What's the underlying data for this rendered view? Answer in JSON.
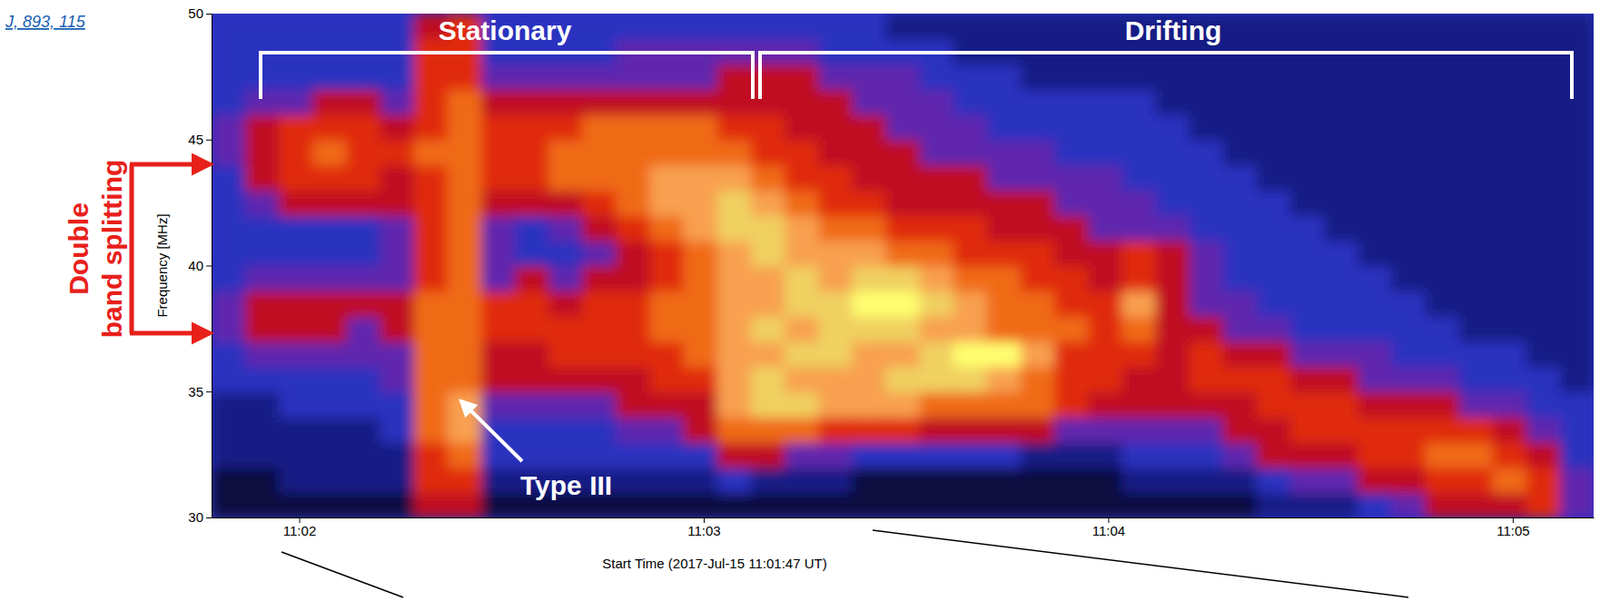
{
  "chart_data": {
    "type": "heatmap",
    "citation": "J, 893, 115",
    "x_label": "Start Time (2017-Jul-15 11:01:47 UT)",
    "y_label": "Frequency [MHz]",
    "xlim": [
      0,
      205
    ],
    "ylim": [
      30,
      50
    ],
    "xticks": [
      {
        "value": 13,
        "label": "11:02"
      },
      {
        "value": 73,
        "label": "11:03"
      },
      {
        "value": 133,
        "label": "11:04"
      },
      {
        "value": 193,
        "label": "11:05"
      }
    ],
    "yticks": [
      30,
      35,
      40,
      45,
      50
    ],
    "x_edges": [
      0,
      5,
      10,
      15,
      20,
      25,
      30,
      35,
      40,
      45,
      50,
      55,
      60,
      65,
      70,
      75,
      80,
      85,
      90,
      95,
      100,
      105,
      110,
      115,
      120,
      125,
      130,
      135,
      140,
      145,
      150,
      155,
      160,
      165,
      170,
      175,
      180,
      185,
      190,
      195,
      200,
      205
    ],
    "y_edges": [
      30,
      31,
      32,
      33,
      34,
      35,
      36,
      37,
      38,
      39,
      40,
      41,
      42,
      43,
      44,
      45,
      46,
      47,
      48,
      49,
      50
    ],
    "zlim": [
      0,
      10
    ],
    "z": [
      [
        1,
        1,
        2,
        2,
        2,
        3,
        3,
        4,
        4,
        3,
        3,
        3,
        3,
        3,
        4,
        4,
        3,
        3,
        3,
        3
      ],
      [
        1,
        1,
        2,
        2,
        2,
        3,
        4,
        5,
        5,
        4,
        3,
        3,
        4,
        5,
        5,
        5,
        4,
        3,
        3,
        3
      ],
      [
        1,
        2,
        2,
        2,
        3,
        3,
        4,
        5,
        5,
        4,
        3,
        3,
        5,
        6,
        6,
        6,
        4,
        3,
        3,
        3
      ],
      [
        1,
        2,
        2,
        2,
        3,
        3,
        4,
        5,
        5,
        4,
        3,
        3,
        5,
        6,
        7,
        6,
        5,
        3,
        3,
        3
      ],
      [
        1,
        2,
        2,
        2,
        3,
        3,
        4,
        4,
        5,
        4,
        3,
        3,
        5,
        6,
        6,
        6,
        5,
        3,
        3,
        3
      ],
      [
        1,
        2,
        2,
        3,
        3,
        4,
        4,
        5,
        5,
        4,
        4,
        4,
        5,
        5,
        6,
        5,
        4,
        3,
        3,
        3
      ],
      [
        5,
        6,
        6,
        7,
        7,
        7,
        7,
        7,
        7,
        6,
        6,
        6,
        6,
        6,
        7,
        6,
        6,
        6,
        6,
        5
      ],
      [
        5,
        6,
        7,
        8,
        8,
        7,
        7,
        7,
        7,
        7,
        7,
        7,
        7,
        7,
        7,
        7,
        7,
        6,
        6,
        6
      ],
      [
        1,
        2,
        3,
        3,
        4,
        5,
        5,
        6,
        6,
        4,
        4,
        4,
        5,
        6,
        6,
        6,
        5,
        4,
        3,
        3
      ],
      [
        1,
        2,
        3,
        3,
        4,
        5,
        5,
        6,
        6,
        5,
        3,
        3,
        5,
        6,
        6,
        6,
        5,
        4,
        3,
        3
      ],
      [
        1,
        2,
        3,
        3,
        4,
        5,
        6,
        6,
        5,
        4,
        3,
        4,
        5,
        7,
        7,
        6,
        5,
        4,
        3,
        3
      ],
      [
        1,
        2,
        3,
        3,
        4,
        5,
        6,
        6,
        6,
        5,
        4,
        5,
        6,
        7,
        7,
        7,
        5,
        4,
        3,
        3
      ],
      [
        1,
        2,
        3,
        4,
        5,
        5,
        6,
        6,
        6,
        5,
        5,
        6,
        7,
        7,
        7,
        7,
        5,
        4,
        4,
        3
      ],
      [
        1,
        2,
        3,
        4,
        5,
        6,
        6,
        7,
        7,
        6,
        6,
        7,
        8,
        8,
        7,
        7,
        5,
        4,
        4,
        3
      ],
      [
        1,
        2,
        3,
        5,
        5,
        6,
        7,
        7,
        7,
        7,
        7,
        8,
        8,
        8,
        7,
        7,
        5,
        4,
        4,
        3
      ],
      [
        1,
        3,
        5,
        7,
        8,
        8,
        8,
        8,
        8,
        8,
        8,
        9,
        9,
        8,
        7,
        6,
        5,
        5,
        4,
        3
      ],
      [
        1,
        2,
        5,
        7,
        9,
        9,
        8,
        9,
        8,
        8,
        9,
        9,
        8,
        7,
        6,
        6,
        5,
        5,
        4,
        3
      ],
      [
        1,
        2,
        4,
        7,
        9,
        8,
        9,
        8,
        9,
        9,
        8,
        8,
        7,
        6,
        6,
        5,
        5,
        5,
        4,
        3
      ],
      [
        1,
        2,
        4,
        6,
        8,
        8,
        9,
        9,
        9,
        8,
        8,
        7,
        6,
        6,
        5,
        5,
        5,
        4,
        3,
        3
      ],
      [
        1,
        1,
        3,
        6,
        8,
        8,
        8,
        9,
        10,
        9,
        8,
        7,
        6,
        5,
        5,
        5,
        4,
        4,
        3,
        3
      ],
      [
        1,
        1,
        3,
        6,
        8,
        9,
        8,
        9,
        10,
        9,
        7,
        6,
        5,
        5,
        5,
        4,
        4,
        4,
        3,
        2
      ],
      [
        1,
        1,
        3,
        5,
        7,
        9,
        9,
        8,
        9,
        8,
        7,
        6,
        5,
        5,
        4,
        4,
        4,
        3,
        3,
        2
      ],
      [
        1,
        1,
        3,
        5,
        7,
        9,
        10,
        8,
        8,
        7,
        6,
        6,
        5,
        5,
        4,
        4,
        3,
        3,
        2,
        2
      ],
      [
        1,
        1,
        3,
        5,
        7,
        8,
        10,
        7,
        7,
        7,
        6,
        5,
        5,
        4,
        4,
        3,
        3,
        3,
        2,
        2
      ],
      [
        1,
        1,
        2,
        5,
        7,
        7,
        8,
        7,
        7,
        6,
        6,
        5,
        5,
        4,
        4,
        3,
        3,
        2,
        2,
        2
      ],
      [
        1,
        1,
        2,
        4,
        6,
        6,
        6,
        7,
        6,
        6,
        5,
        5,
        4,
        4,
        3,
        3,
        3,
        2,
        2,
        2
      ],
      [
        1,
        1,
        2,
        4,
        5,
        6,
        6,
        6,
        6,
        5,
        5,
        4,
        4,
        4,
        3,
        3,
        3,
        2,
        2,
        2
      ],
      [
        1,
        2,
        3,
        4,
        5,
        5,
        6,
        7,
        8,
        6,
        6,
        4,
        4,
        3,
        3,
        3,
        3,
        2,
        2,
        2
      ],
      [
        1,
        2,
        3,
        4,
        5,
        5,
        5,
        5,
        5,
        5,
        5,
        4,
        3,
        3,
        3,
        3,
        2,
        2,
        2,
        2
      ],
      [
        1,
        2,
        3,
        4,
        5,
        6,
        6,
        5,
        4,
        4,
        4,
        3,
        3,
        3,
        3,
        2,
        2,
        2,
        2,
        2
      ],
      [
        1,
        2,
        4,
        5,
        5,
        6,
        5,
        4,
        4,
        3,
        3,
        3,
        3,
        3,
        2,
        2,
        2,
        2,
        2,
        2
      ],
      [
        2,
        3,
        5,
        5,
        6,
        6,
        5,
        4,
        3,
        3,
        3,
        3,
        3,
        2,
        2,
        2,
        2,
        2,
        2,
        2
      ],
      [
        2,
        4,
        5,
        6,
        6,
        5,
        4,
        3,
        3,
        3,
        3,
        3,
        2,
        2,
        2,
        2,
        2,
        2,
        2,
        2
      ],
      [
        2,
        4,
        5,
        6,
        6,
        5,
        4,
        3,
        3,
        3,
        3,
        2,
        2,
        2,
        2,
        2,
        2,
        2,
        2,
        2
      ],
      [
        3,
        5,
        6,
        6,
        5,
        4,
        4,
        3,
        3,
        3,
        2,
        2,
        2,
        2,
        2,
        2,
        2,
        2,
        2,
        2
      ],
      [
        4,
        5,
        6,
        6,
        5,
        4,
        3,
        3,
        3,
        2,
        2,
        2,
        2,
        2,
        2,
        2,
        2,
        2,
        2,
        2
      ],
      [
        5,
        6,
        7,
        6,
        5,
        4,
        3,
        3,
        2,
        2,
        2,
        2,
        2,
        2,
        2,
        2,
        2,
        2,
        2,
        2
      ],
      [
        5,
        6,
        7,
        6,
        4,
        3,
        3,
        2,
        2,
        2,
        2,
        2,
        2,
        2,
        2,
        2,
        2,
        2,
        2,
        2
      ],
      [
        5,
        7,
        6,
        5,
        4,
        3,
        3,
        2,
        2,
        2,
        2,
        2,
        2,
        2,
        2,
        2,
        2,
        2,
        2,
        2
      ],
      [
        6,
        6,
        5,
        4,
        3,
        3,
        2,
        2,
        2,
        2,
        2,
        2,
        2,
        2,
        2,
        2,
        2,
        2,
        2,
        2
      ],
      [
        4,
        4,
        3,
        3,
        3,
        2,
        2,
        2,
        2,
        2,
        2,
        2,
        2,
        2,
        2,
        2,
        2,
        2,
        2,
        2
      ]
    ],
    "annotations": [
      {
        "text": "Stationary"
      },
      {
        "text": "Drifting"
      },
      {
        "text": "Double band splitting"
      },
      {
        "text": "Type III"
      }
    ]
  }
}
